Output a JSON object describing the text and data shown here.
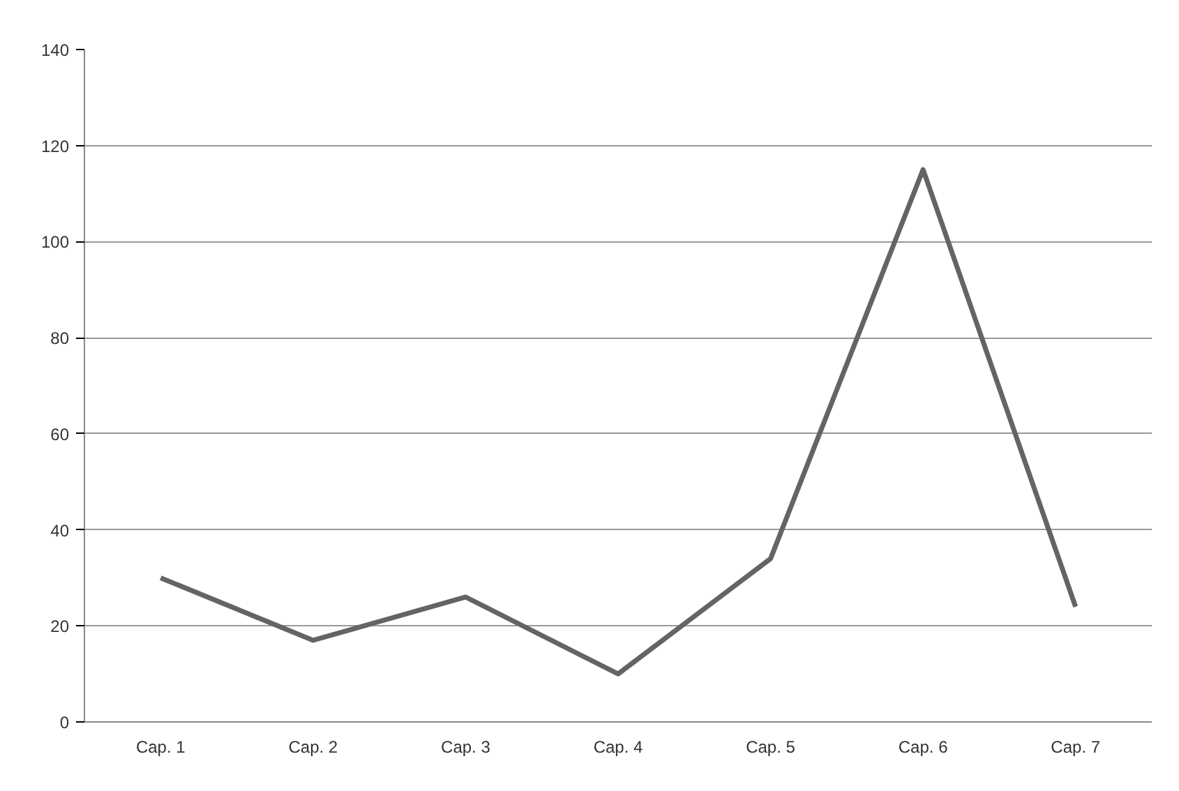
{
  "chart_data": {
    "type": "line",
    "categories": [
      "Cap. 1",
      "Cap. 2",
      "Cap. 3",
      "Cap. 4",
      "Cap. 5",
      "Cap. 6",
      "Cap. 7"
    ],
    "series": [
      {
        "color": "#646464",
        "values": [
          30,
          17,
          26,
          10,
          34,
          115,
          24
        ]
      }
    ],
    "ylim": [
      0,
      140
    ],
    "yticks": [
      0,
      20,
      40,
      60,
      80,
      100,
      120,
      140
    ],
    "grid": "y"
  }
}
